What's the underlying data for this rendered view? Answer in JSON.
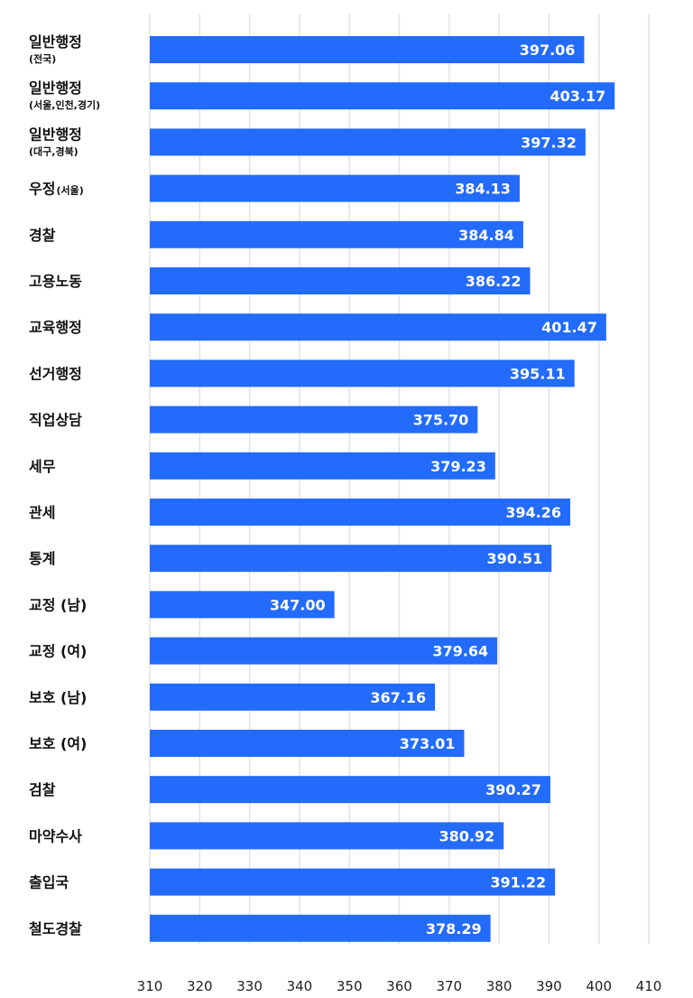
{
  "chart_data": {
    "type": "bar",
    "orientation": "horizontal",
    "title": "",
    "xlabel": "",
    "ylabel": "",
    "xlim": [
      310,
      410
    ],
    "ticks": [
      310,
      320,
      330,
      340,
      350,
      360,
      370,
      380,
      390,
      400,
      410
    ],
    "grid": true,
    "legend": "none",
    "bar_color": "#236bfa",
    "categories": [
      {
        "main": "일반행정",
        "sub": "(전국)"
      },
      {
        "main": "일반행정",
        "sub": "(서울,인천,경기)"
      },
      {
        "main": "일반행정",
        "sub": "(대구,경북)"
      },
      {
        "main": "우정",
        "sub": "(서울)"
      },
      {
        "main": "경찰",
        "sub": ""
      },
      {
        "main": "고용노동",
        "sub": ""
      },
      {
        "main": "교육행정",
        "sub": ""
      },
      {
        "main": "선거행정",
        "sub": ""
      },
      {
        "main": "직업상담",
        "sub": ""
      },
      {
        "main": "세무",
        "sub": ""
      },
      {
        "main": "관세",
        "sub": ""
      },
      {
        "main": "통계",
        "sub": ""
      },
      {
        "main": "교정 (남)",
        "sub": ""
      },
      {
        "main": "교정 (여)",
        "sub": ""
      },
      {
        "main": "보호 (남)",
        "sub": ""
      },
      {
        "main": "보호 (여)",
        "sub": ""
      },
      {
        "main": "검찰",
        "sub": ""
      },
      {
        "main": "마약수사",
        "sub": ""
      },
      {
        "main": "출입국",
        "sub": ""
      },
      {
        "main": "철도경찰",
        "sub": ""
      }
    ],
    "values": [
      397.06,
      403.17,
      397.32,
      384.13,
      384.84,
      386.22,
      401.47,
      395.11,
      375.7,
      379.23,
      394.26,
      390.51,
      347.0,
      379.64,
      367.16,
      373.01,
      390.27,
      380.92,
      391.22,
      378.29
    ],
    "value_labels": [
      "397.06",
      "403.17",
      "397.32",
      "384.13",
      "384.84",
      "386.22",
      "401.47",
      "395.11",
      "375.70",
      "379.23",
      "394.26",
      "390.51",
      "347.00",
      "379.64",
      "367.16",
      "373.01",
      "390.27",
      "380.92",
      "391.22",
      "378.29"
    ]
  }
}
